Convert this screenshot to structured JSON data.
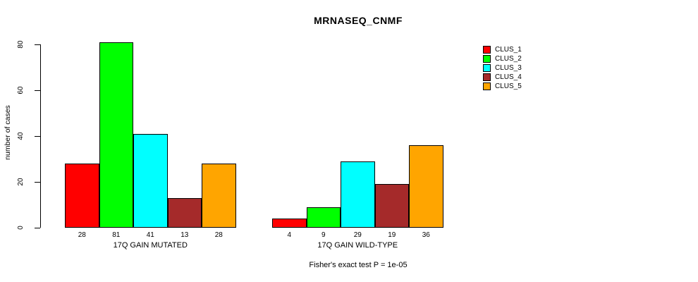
{
  "chart_data": {
    "type": "bar",
    "title": "MRNASEQ_CNMF",
    "xlabel": "",
    "ylabel": "number of cases",
    "ylim": [
      0,
      80
    ],
    "yticks": [
      0,
      20,
      40,
      60,
      80
    ],
    "grid": false,
    "legend_position": "right",
    "clusters": [
      "CLUS_1",
      "CLUS_2",
      "CLUS_3",
      "CLUS_4",
      "CLUS_5"
    ],
    "colors": [
      "#FF0000",
      "#00FF00",
      "#00FFFF",
      "#A52A2A",
      "#FFA500"
    ],
    "groups": [
      {
        "label": "17Q GAIN MUTATED",
        "values": [
          28,
          81,
          41,
          13,
          28
        ]
      },
      {
        "label": "17Q GAIN WILD-TYPE",
        "values": [
          4,
          9,
          29,
          19,
          36
        ]
      }
    ],
    "annotation": "Fisher's exact test P = 1e-05"
  },
  "legend": {
    "items": [
      {
        "label": "CLUS_1",
        "color": "#FF0000"
      },
      {
        "label": "CLUS_2",
        "color": "#00FF00"
      },
      {
        "label": "CLUS_3",
        "color": "#00FFFF"
      },
      {
        "label": "CLUS_4",
        "color": "#A52A2A"
      },
      {
        "label": "CLUS_5",
        "color": "#FFA500"
      }
    ]
  },
  "palette": {
    "background": "#FFFFFF",
    "axis": "#000000",
    "text": "#000000"
  }
}
